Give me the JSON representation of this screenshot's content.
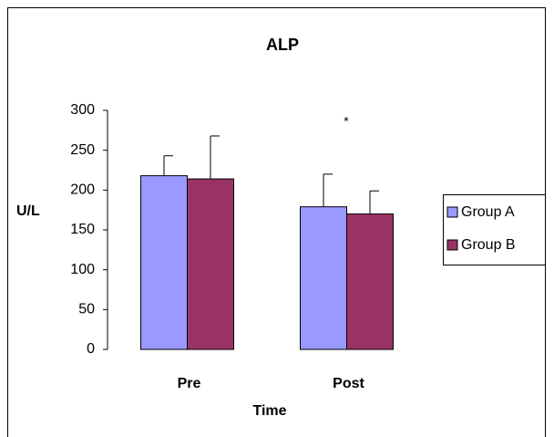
{
  "chart_data": {
    "type": "bar",
    "title": "ALP",
    "x_label": "Time",
    "y_label": "U/L",
    "categories": [
      "Pre",
      "Post"
    ],
    "series": [
      {
        "name": "Group A",
        "color": "#9999ff",
        "values": [
          218,
          179
        ],
        "errors": [
          25,
          41
        ]
      },
      {
        "name": "Group B",
        "color": "#993366",
        "values": [
          214,
          170
        ],
        "errors": [
          54,
          29
        ]
      }
    ],
    "annotations": [
      "*"
    ],
    "ylim": [
      0,
      300
    ],
    "yticks": [
      0,
      50,
      100,
      150,
      200,
      250,
      300
    ],
    "grid": false,
    "legend": "right"
  }
}
